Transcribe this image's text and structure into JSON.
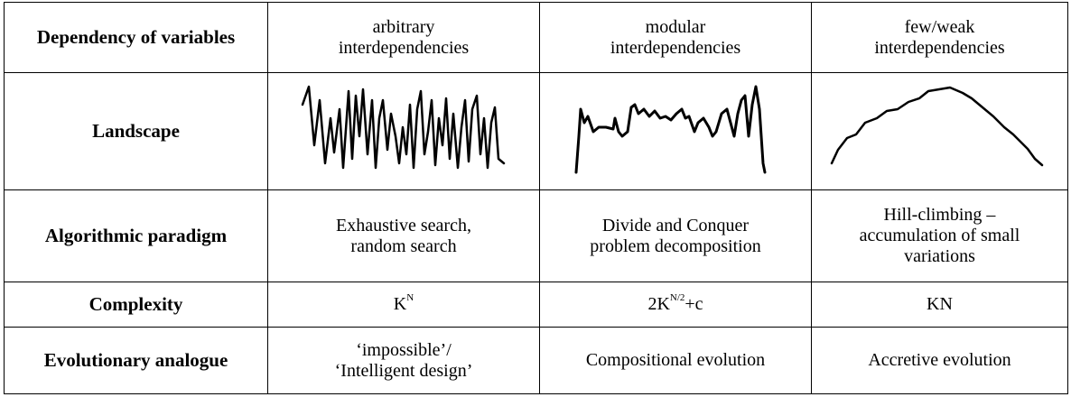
{
  "table": {
    "rows": [
      {
        "label": "Dependency of variables",
        "cells": [
          [
            "arbitrary",
            "interdependencies"
          ],
          [
            "modular",
            "interdependencies"
          ],
          [
            "few/weak",
            "interdependencies"
          ]
        ]
      },
      {
        "label": "Landscape"
      },
      {
        "label": "Algorithmic paradigm",
        "cells": [
          [
            "Exhaustive search,",
            "random search"
          ],
          [
            "Divide and Conquer",
            "problem decomposition"
          ],
          [
            "Hill-climbing –",
            "accumulation of small",
            "variations"
          ]
        ]
      },
      {
        "label": "Complexity",
        "formulas": [
          {
            "base": "K",
            "sup": "N"
          },
          {
            "base": "2K",
            "sup": "N/2",
            "tail": "+c"
          },
          {
            "base": "KN"
          }
        ]
      },
      {
        "label": "Evolutionary analogue",
        "cells": [
          [
            "‘impossible’/",
            "‘Intelligent design’"
          ],
          [
            "Compositional evolution"
          ],
          [
            "Accretive evolution"
          ]
        ]
      }
    ]
  }
}
